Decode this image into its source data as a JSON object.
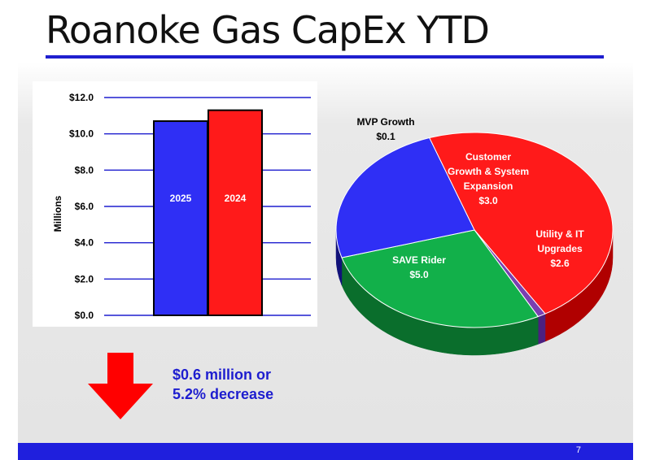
{
  "slide": {
    "title": "Roanoke Gas CapEx YTD",
    "callout": [
      "$0.6 million or",
      "5.2% decrease"
    ],
    "page_number": "7",
    "colors": {
      "accent": "#1f1fdd",
      "callout": "#1d1dcf",
      "arrow": "#ff0000"
    }
  },
  "chart_data": [
    {
      "type": "bar",
      "ylabel": "Millions",
      "ylim": [
        0,
        12
      ],
      "y_ticks": [
        {
          "value": 0,
          "label": "$0.0"
        },
        {
          "value": 2,
          "label": "$2.0"
        },
        {
          "value": 4,
          "label": "$4.0"
        },
        {
          "value": 6,
          "label": "$6.0"
        },
        {
          "value": 8,
          "label": "$8.0"
        },
        {
          "value": 10,
          "label": "$10.0"
        },
        {
          "value": 12,
          "label": "$12.0"
        }
      ],
      "grid": true,
      "bars": [
        {
          "label": "2025",
          "value": 10.7,
          "color": "#2f2ff5"
        },
        {
          "label": "2024",
          "value": 11.3,
          "color": "#ff1a1a"
        }
      ]
    },
    {
      "type": "pie",
      "slices": [
        {
          "label": [
            "SAVE Rider",
            "$5.0"
          ],
          "value": 5.0,
          "color": "#ff1a1a",
          "side": "#b00000"
        },
        {
          "label": [
            "MVP Growth",
            "$0.1"
          ],
          "value": 0.1,
          "color": "#7a3fb0",
          "side": "#4b2080"
        },
        {
          "label": [
            "Customer",
            "Growth & System",
            "Expansion",
            "$3.0"
          ],
          "value": 3.0,
          "color": "#12b04a",
          "side": "#0a6e2c"
        },
        {
          "label": [
            "Utility & IT",
            "Upgrades",
            "$2.6"
          ],
          "value": 2.6,
          "color": "#2f2ff5",
          "side": "#12127a"
        }
      ]
    }
  ]
}
